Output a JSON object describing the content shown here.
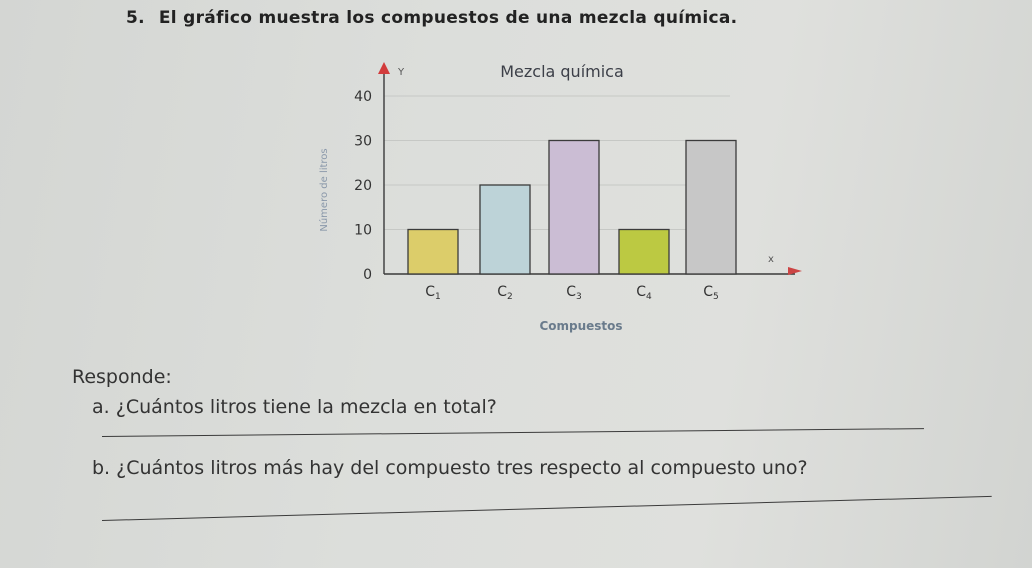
{
  "exercise": {
    "number": "5.",
    "prompt": "El gráfico muestra los compuestos de una mezcla química."
  },
  "chart_data": {
    "type": "bar",
    "title": "Mezcla química",
    "xlabel": "Compuestos",
    "ylabel": "Número de litros",
    "x_axis_letter": "x",
    "y_axis_letter": "Y",
    "categories": [
      "C1",
      "C2",
      "C3",
      "C4",
      "C5"
    ],
    "values": [
      10,
      20,
      30,
      10,
      30
    ],
    "colors": [
      "#dccd6a",
      "#bdd3d8",
      "#cbbdd4",
      "#bcc942",
      "#c7c7c7"
    ],
    "y_ticks": [
      0,
      10,
      20,
      30,
      40
    ],
    "ylim": [
      0,
      40
    ],
    "grid": true
  },
  "responses": {
    "heading": "Responde:",
    "items": [
      {
        "letter": "a.",
        "text": "¿Cuántos litros tiene la mezcla en total?"
      },
      {
        "letter": "b.",
        "text": "¿Cuántos litros más hay del compuesto tres respecto al compuesto uno?"
      }
    ]
  }
}
